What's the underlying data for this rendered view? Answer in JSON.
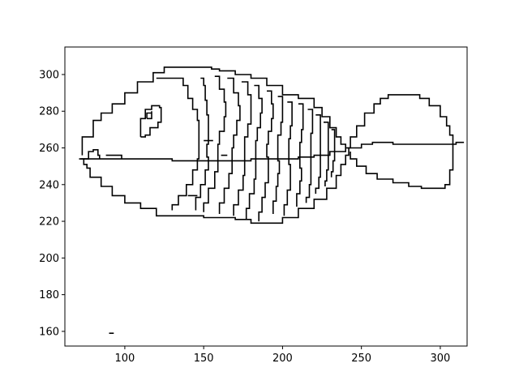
{
  "chart_data": {
    "type": "line",
    "title": "",
    "xlabel": "",
    "ylabel": "",
    "xlim": [
      62,
      317
    ],
    "ylim": [
      152,
      315
    ],
    "xticks": [
      100,
      150,
      200,
      250,
      300
    ],
    "yticks": [
      160,
      180,
      200,
      220,
      240,
      260,
      280,
      300
    ],
    "grid": false,
    "line_color": "#000000",
    "series": [
      {
        "points": [
          [
            73,
            256
          ],
          [
            73,
            266
          ],
          [
            80,
            275
          ],
          [
            85,
            279
          ],
          [
            92,
            284
          ],
          [
            100,
            290
          ],
          [
            108,
            296
          ],
          [
            118,
            301
          ],
          [
            125,
            304
          ],
          [
            140,
            304
          ],
          [
            152,
            304
          ],
          [
            155,
            303
          ],
          [
            160,
            302
          ],
          [
            170,
            300
          ],
          [
            180,
            298
          ],
          [
            190,
            294
          ],
          [
            200,
            289
          ],
          [
            210,
            287
          ],
          [
            220,
            282
          ],
          [
            225,
            277
          ],
          [
            230,
            271
          ],
          [
            234,
            266
          ],
          [
            237,
            262
          ],
          [
            240,
            260
          ]
        ]
      },
      {
        "points": [
          [
            71,
            254
          ],
          [
            74,
            251
          ],
          [
            76,
            249
          ],
          [
            78,
            244
          ],
          [
            85,
            239
          ],
          [
            92,
            234
          ],
          [
            100,
            230
          ],
          [
            110,
            227
          ],
          [
            120,
            223
          ],
          [
            130,
            223
          ],
          [
            140,
            223
          ],
          [
            150,
            222
          ],
          [
            160,
            222
          ],
          [
            170,
            221
          ],
          [
            180,
            219
          ],
          [
            190,
            219
          ],
          [
            200,
            222
          ],
          [
            210,
            227
          ],
          [
            220,
            232
          ],
          [
            228,
            238
          ],
          [
            234,
            245
          ],
          [
            237,
            251
          ],
          [
            240,
            256
          ],
          [
            242,
            260
          ]
        ]
      },
      {
        "points": [
          [
            72,
            254
          ],
          [
            80,
            254
          ],
          [
            90,
            254
          ],
          [
            100,
            254
          ],
          [
            110,
            254
          ],
          [
            120,
            254
          ],
          [
            130,
            253
          ],
          [
            140,
            253
          ],
          [
            150,
            253
          ],
          [
            160,
            253
          ],
          [
            170,
            253
          ],
          [
            180,
            254
          ],
          [
            190,
            254
          ],
          [
            200,
            254
          ],
          [
            210,
            255
          ],
          [
            220,
            256
          ],
          [
            230,
            258
          ],
          [
            240,
            260
          ],
          [
            250,
            262
          ],
          [
            257,
            263
          ],
          [
            264,
            263
          ],
          [
            270,
            262
          ],
          [
            280,
            262
          ],
          [
            290,
            262
          ],
          [
            300,
            262
          ],
          [
            310,
            263
          ],
          [
            315,
            263
          ]
        ]
      },
      {
        "points": [
          [
            241,
            260
          ],
          [
            243,
            266
          ],
          [
            247,
            272
          ],
          [
            252,
            279
          ],
          [
            258,
            284
          ],
          [
            262,
            287
          ],
          [
            267,
            289
          ],
          [
            275,
            289
          ],
          [
            282,
            289
          ],
          [
            287,
            287
          ],
          [
            293,
            283
          ],
          [
            300,
            277
          ],
          [
            304,
            272
          ],
          [
            306,
            267
          ],
          [
            308,
            262
          ],
          [
            308,
            255
          ],
          [
            308,
            248
          ],
          [
            306,
            240
          ],
          [
            303,
            238
          ],
          [
            296,
            238
          ],
          [
            288,
            239
          ],
          [
            280,
            241
          ],
          [
            270,
            243
          ],
          [
            260,
            246
          ],
          [
            253,
            250
          ],
          [
            247,
            254
          ],
          [
            243,
            258
          ]
        ]
      },
      {
        "points": [
          [
            110,
            266
          ],
          [
            110,
            276
          ],
          [
            113,
            281
          ],
          [
            117,
            283
          ],
          [
            122,
            282
          ],
          [
            123,
            279
          ],
          [
            123,
            274
          ],
          [
            121,
            271
          ],
          [
            116,
            267
          ],
          [
            113,
            266
          ],
          [
            110,
            266
          ]
        ]
      },
      {
        "points": [
          [
            114,
            276
          ],
          [
            114,
            279
          ],
          [
            117,
            280
          ],
          [
            117,
            276
          ],
          [
            114,
            276
          ]
        ]
      },
      {
        "points": [
          [
            74,
            254
          ],
          [
            77,
            258
          ],
          [
            80,
            259
          ],
          [
            83,
            256
          ],
          [
            84,
            254
          ]
        ]
      },
      {
        "points": [
          [
            88,
            256
          ],
          [
            95,
            256
          ],
          [
            98,
            254
          ]
        ]
      },
      {
        "points": [
          [
            120,
            298
          ],
          [
            132,
            298
          ],
          [
            137,
            294
          ],
          [
            140,
            287
          ],
          [
            143,
            281
          ],
          [
            146,
            275
          ],
          [
            147,
            267
          ],
          [
            147,
            260
          ],
          [
            147,
            254
          ],
          [
            146,
            248
          ],
          [
            143,
            240
          ],
          [
            139,
            234
          ],
          [
            134,
            229
          ],
          [
            130,
            226
          ]
        ]
      },
      {
        "points": [
          [
            148,
            298
          ],
          [
            150,
            294
          ],
          [
            151,
            286
          ],
          [
            152,
            278
          ],
          [
            153,
            270
          ],
          [
            153,
            262
          ],
          [
            152,
            255
          ],
          [
            153,
            248
          ],
          [
            151,
            240
          ],
          [
            148,
            233
          ],
          [
            145,
            226
          ]
        ]
      },
      {
        "points": [
          [
            157,
            299
          ],
          [
            160,
            292
          ],
          [
            163,
            285
          ],
          [
            164,
            277
          ],
          [
            163,
            269
          ],
          [
            160,
            262
          ],
          [
            159,
            254
          ],
          [
            159,
            247
          ],
          [
            157,
            238
          ],
          [
            153,
            230
          ],
          [
            150,
            225
          ]
        ]
      },
      {
        "points": [
          [
            165,
            298
          ],
          [
            169,
            290
          ],
          [
            172,
            283
          ],
          [
            173,
            275
          ],
          [
            171,
            267
          ],
          [
            169,
            260
          ],
          [
            168,
            253
          ],
          [
            168,
            246
          ],
          [
            166,
            238
          ],
          [
            163,
            230
          ],
          [
            160,
            224
          ]
        ]
      },
      {
        "points": [
          [
            174,
            296
          ],
          [
            178,
            289
          ],
          [
            180,
            281
          ],
          [
            180,
            273
          ],
          [
            178,
            266
          ],
          [
            176,
            259
          ],
          [
            176,
            252
          ],
          [
            176,
            245
          ],
          [
            175,
            237
          ],
          [
            172,
            229
          ],
          [
            169,
            223
          ]
        ]
      },
      {
        "points": [
          [
            182,
            294
          ],
          [
            185,
            287
          ],
          [
            187,
            279
          ],
          [
            186,
            271
          ],
          [
            184,
            264
          ],
          [
            183,
            257
          ],
          [
            183,
            250
          ],
          [
            183,
            243
          ],
          [
            182,
            235
          ],
          [
            179,
            227
          ],
          [
            177,
            221
          ]
        ]
      },
      {
        "points": [
          [
            190,
            291
          ],
          [
            193,
            284
          ],
          [
            194,
            276
          ],
          [
            193,
            269
          ],
          [
            191,
            262
          ],
          [
            190,
            255
          ],
          [
            191,
            248
          ],
          [
            191,
            241
          ],
          [
            189,
            233
          ],
          [
            187,
            225
          ],
          [
            185,
            220
          ]
        ]
      },
      {
        "points": [
          [
            197,
            288
          ],
          [
            200,
            281
          ],
          [
            200,
            274
          ],
          [
            199,
            267
          ],
          [
            197,
            260
          ],
          [
            197,
            253
          ],
          [
            198,
            246
          ],
          [
            197,
            239
          ],
          [
            196,
            231
          ],
          [
            194,
            224
          ]
        ]
      },
      {
        "points": [
          [
            203,
            285
          ],
          [
            206,
            279
          ],
          [
            206,
            272
          ],
          [
            205,
            265
          ],
          [
            204,
            258
          ],
          [
            204,
            251
          ],
          [
            205,
            244
          ],
          [
            205,
            237
          ],
          [
            203,
            229
          ],
          [
            201,
            223
          ]
        ]
      },
      {
        "points": [
          [
            210,
            284
          ],
          [
            213,
            277
          ],
          [
            213,
            270
          ],
          [
            212,
            263
          ],
          [
            211,
            256
          ],
          [
            211,
            249
          ],
          [
            212,
            242
          ],
          [
            211,
            235
          ],
          [
            209,
            228
          ]
        ]
      },
      {
        "points": [
          [
            216,
            281
          ],
          [
            219,
            275
          ],
          [
            219,
            268
          ],
          [
            218,
            261
          ],
          [
            218,
            254
          ],
          [
            218,
            247
          ],
          [
            218,
            240
          ],
          [
            217,
            233
          ],
          [
            215,
            230
          ]
        ]
      },
      {
        "points": [
          [
            221,
            278
          ],
          [
            224,
            272
          ],
          [
            224,
            265
          ],
          [
            224,
            258
          ],
          [
            224,
            251
          ],
          [
            224,
            244
          ],
          [
            223,
            238
          ],
          [
            221,
            235
          ]
        ]
      },
      {
        "points": [
          [
            226,
            274
          ],
          [
            229,
            268
          ],
          [
            229,
            262
          ],
          [
            229,
            255
          ],
          [
            229,
            248
          ],
          [
            228,
            242
          ],
          [
            227,
            239
          ]
        ]
      },
      {
        "points": [
          [
            231,
            270
          ],
          [
            233,
            265
          ],
          [
            233,
            259
          ],
          [
            233,
            253
          ],
          [
            232,
            247
          ],
          [
            231,
            244
          ]
        ]
      },
      {
        "points": [
          [
            140,
            234
          ],
          [
            146,
            234
          ]
        ]
      },
      {
        "points": [
          [
            150,
            264
          ],
          [
            156,
            264
          ]
        ]
      },
      {
        "points": [
          [
            161,
            256
          ],
          [
            165,
            256
          ]
        ]
      },
      {
        "points": [
          [
            90,
            159
          ],
          [
            93,
            159
          ]
        ]
      }
    ]
  }
}
